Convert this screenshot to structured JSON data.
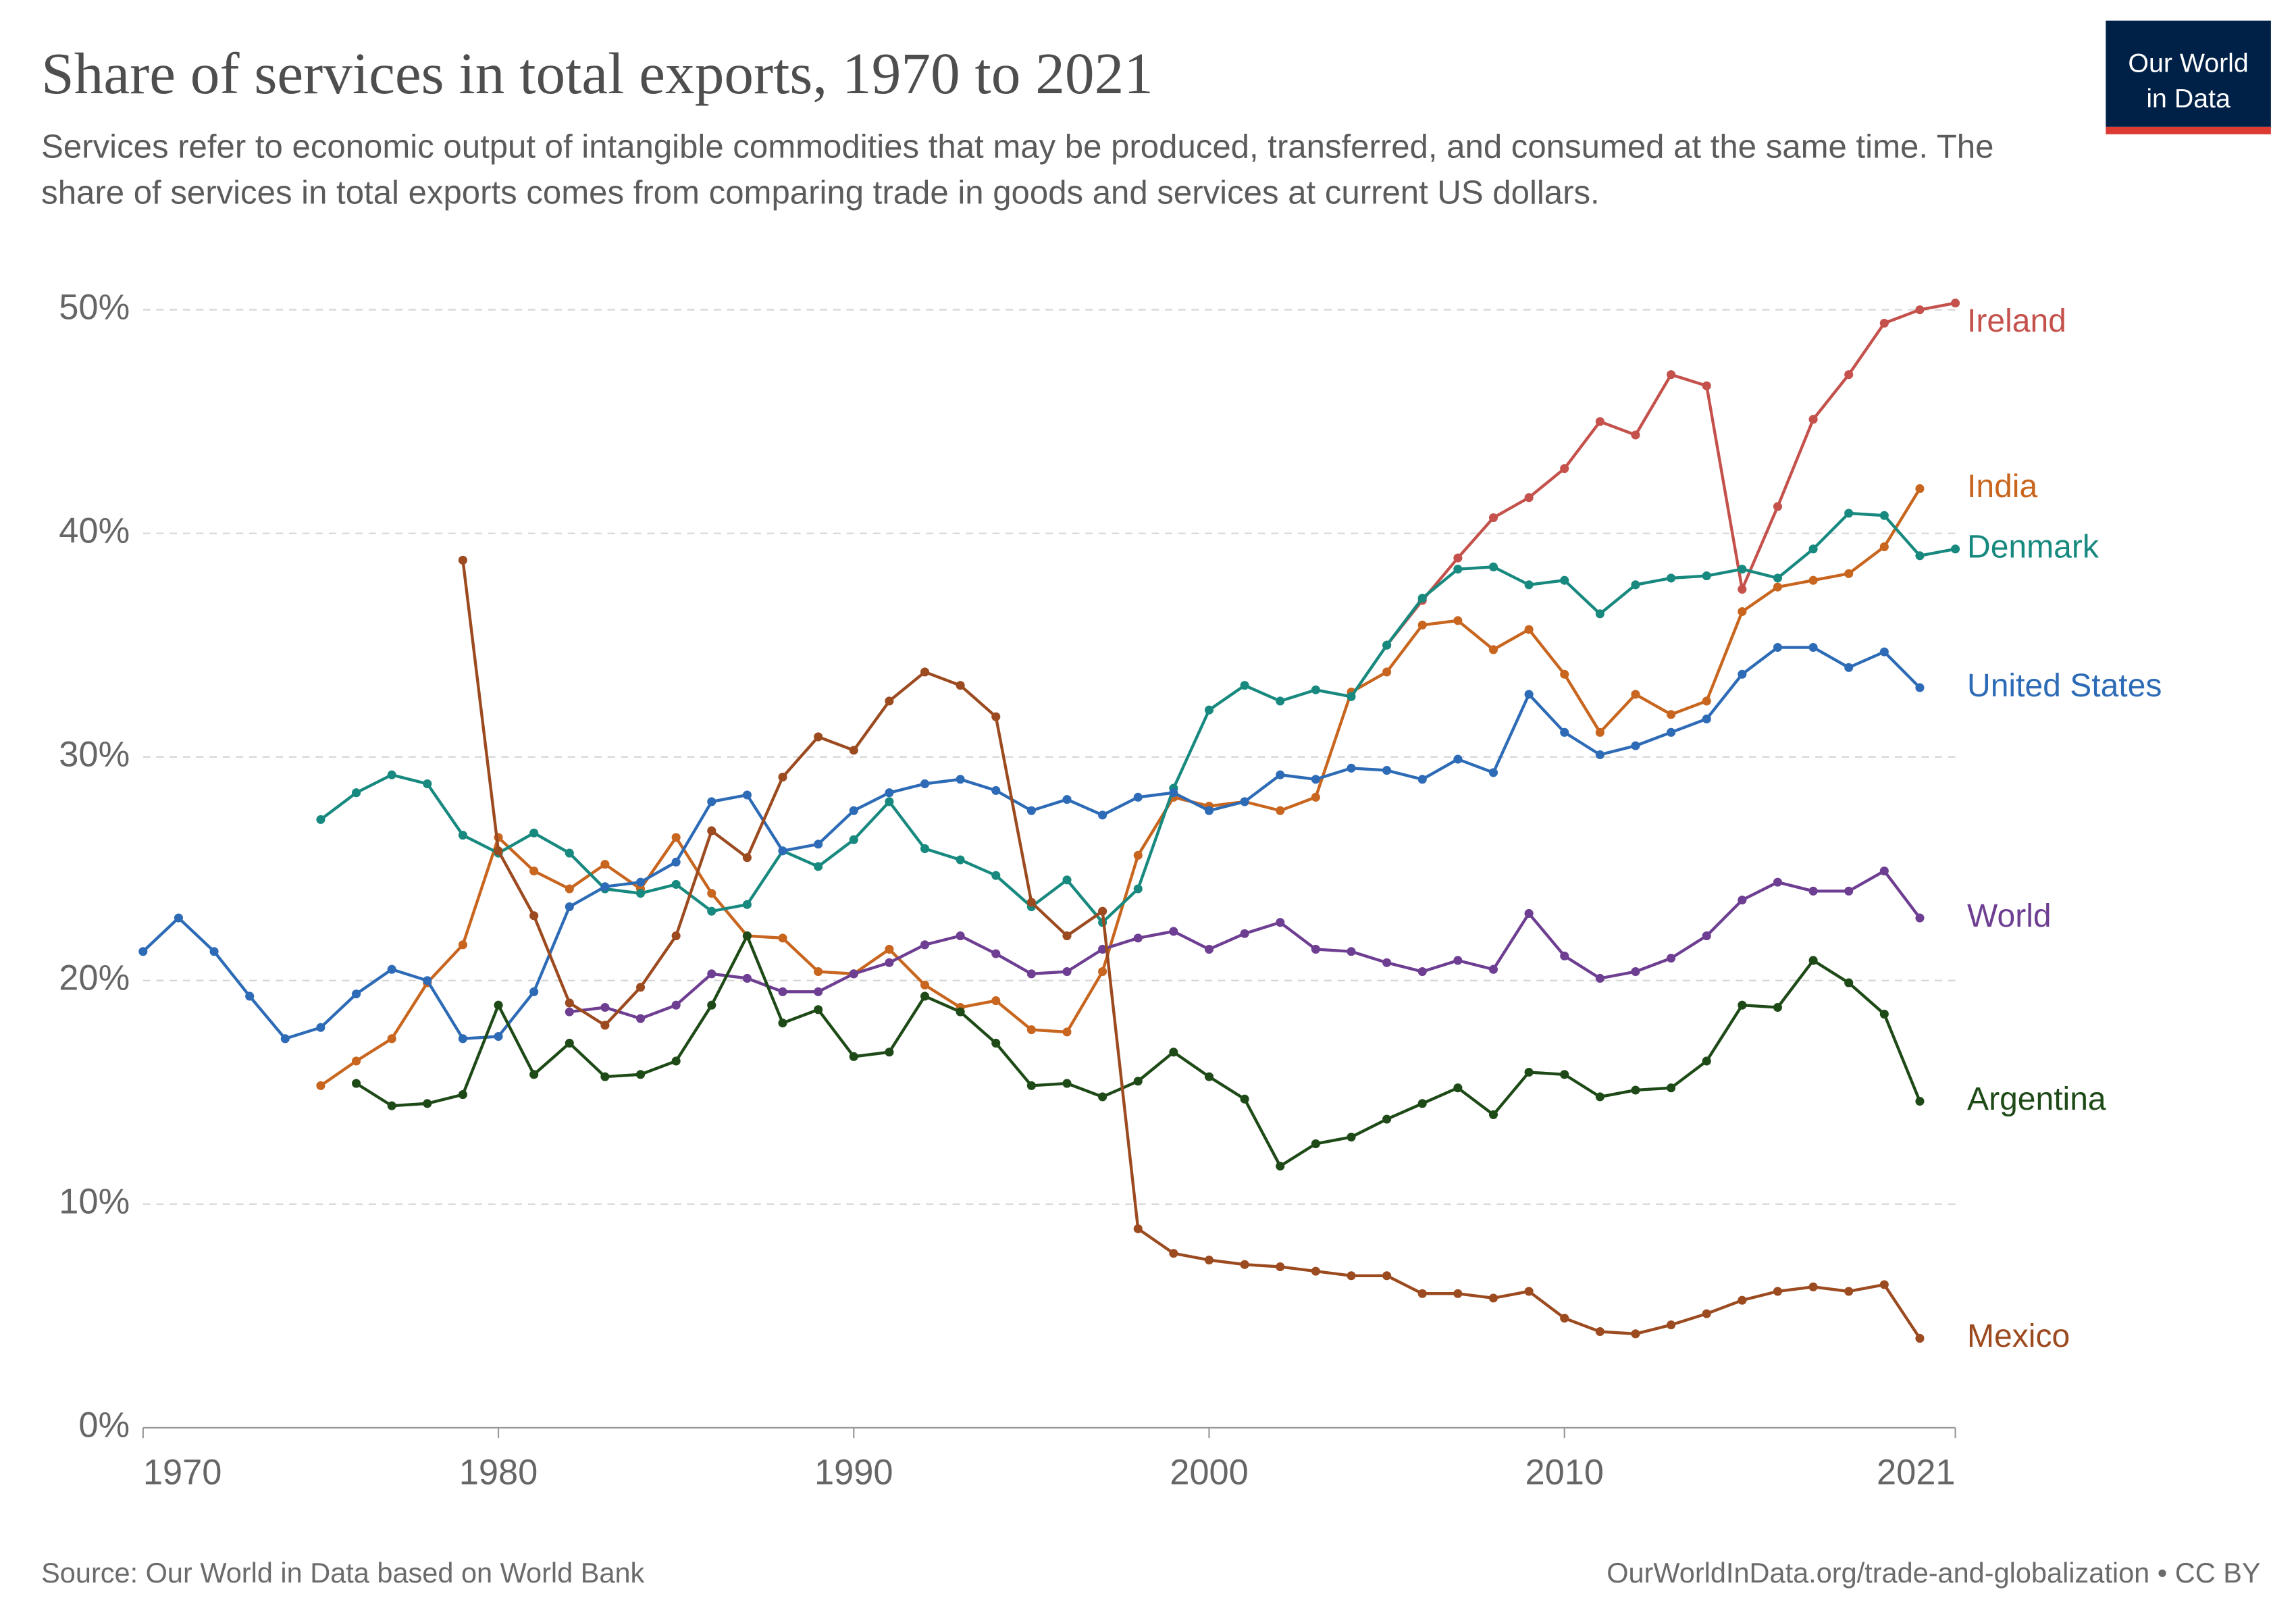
{
  "chart_data": {
    "type": "line",
    "title": "Share of services in total exports, 1970 to 2021",
    "subtitle": "Services refer to economic output of intangible commodities that may be produced, transferred, and consumed at the same time. The share of services in total exports comes from comparing trade in goods and services at current US dollars.",
    "logo": [
      "Our World",
      "in Data"
    ],
    "source": "Source: Our World in Data based on World Bank",
    "license": "OurWorldInData.org/trade-and-globalization • CC BY",
    "x": [
      1970,
      1971,
      1972,
      1973,
      1974,
      1975,
      1976,
      1977,
      1978,
      1979,
      1980,
      1981,
      1982,
      1983,
      1984,
      1985,
      1986,
      1987,
      1988,
      1989,
      1990,
      1991,
      1992,
      1993,
      1994,
      1995,
      1996,
      1997,
      1998,
      1999,
      2000,
      2001,
      2002,
      2003,
      2004,
      2005,
      2006,
      2007,
      2008,
      2009,
      2010,
      2011,
      2012,
      2013,
      2014,
      2015,
      2016,
      2017,
      2018,
      2019,
      2020,
      2021
    ],
    "xlim": [
      1970,
      2021
    ],
    "xticks": [
      1970,
      1980,
      1990,
      2000,
      2010,
      2021
    ],
    "ylim": [
      0,
      50
    ],
    "yticks": [
      {
        "value": 0,
        "label": "0%"
      },
      {
        "value": 10,
        "label": "10%"
      },
      {
        "value": 20,
        "label": "20%"
      },
      {
        "value": 30,
        "label": "30%"
      },
      {
        "value": 40,
        "label": "40%"
      },
      {
        "value": 50,
        "label": "50%"
      }
    ],
    "grid": true,
    "series": [
      {
        "name": "Ireland",
        "color": "#c4514b",
        "values": [
          null,
          null,
          null,
          null,
          null,
          null,
          null,
          null,
          null,
          null,
          null,
          null,
          null,
          null,
          null,
          null,
          null,
          null,
          null,
          null,
          null,
          null,
          null,
          null,
          null,
          null,
          null,
          null,
          null,
          null,
          null,
          null,
          null,
          null,
          null,
          35.0,
          37.0,
          38.9,
          40.7,
          41.6,
          42.9,
          45.0,
          44.4,
          47.1,
          46.6,
          37.5,
          41.2,
          45.1,
          47.1,
          49.4,
          50.0,
          50.3
        ]
      },
      {
        "name": "India",
        "color": "#c8651e",
        "values": [
          null,
          null,
          null,
          null,
          null,
          15.3,
          16.4,
          17.4,
          19.9,
          21.6,
          26.4,
          24.9,
          24.1,
          25.2,
          24.1,
          26.4,
          23.9,
          22.0,
          21.9,
          20.4,
          20.3,
          21.4,
          19.8,
          18.8,
          19.1,
          17.8,
          17.7,
          20.4,
          25.6,
          28.2,
          27.8,
          28.0,
          27.6,
          28.2,
          32.9,
          33.8,
          35.9,
          36.1,
          34.8,
          35.7,
          33.7,
          31.1,
          32.8,
          31.9,
          32.5,
          36.5,
          37.6,
          37.9,
          38.2,
          39.4,
          42.0,
          null
        ]
      },
      {
        "name": "Denmark",
        "color": "#18897f",
        "values": [
          null,
          null,
          null,
          null,
          null,
          27.2,
          28.4,
          29.2,
          28.8,
          26.5,
          25.7,
          26.6,
          25.7,
          24.1,
          23.9,
          24.3,
          23.1,
          23.4,
          25.8,
          25.1,
          26.3,
          28.0,
          25.9,
          25.4,
          24.7,
          23.3,
          24.5,
          22.6,
          24.1,
          28.6,
          32.1,
          33.2,
          32.5,
          33.0,
          32.7,
          35.0,
          37.1,
          38.4,
          38.5,
          37.7,
          37.9,
          36.4,
          37.7,
          38.0,
          38.1,
          38.4,
          38.0,
          39.3,
          40.9,
          40.8,
          39.0,
          39.3
        ]
      },
      {
        "name": "United States",
        "color": "#2d6bb6",
        "values": [
          21.3,
          22.8,
          21.3,
          19.3,
          17.4,
          17.9,
          19.4,
          20.5,
          20.0,
          17.4,
          17.5,
          19.5,
          23.3,
          24.2,
          24.4,
          25.3,
          28.0,
          28.3,
          25.8,
          26.1,
          27.6,
          28.4,
          28.8,
          29.0,
          28.5,
          27.6,
          28.1,
          27.4,
          28.2,
          28.4,
          27.6,
          28.0,
          29.2,
          29.0,
          29.5,
          29.4,
          29.0,
          29.9,
          29.3,
          32.8,
          31.1,
          30.1,
          30.5,
          31.1,
          31.7,
          33.7,
          34.9,
          34.9,
          34.0,
          34.7,
          33.1,
          null
        ]
      },
      {
        "name": "World",
        "color": "#6d3e91",
        "values": [
          null,
          null,
          null,
          null,
          null,
          null,
          null,
          null,
          null,
          null,
          null,
          null,
          18.6,
          18.8,
          18.3,
          18.9,
          20.3,
          20.1,
          19.5,
          19.5,
          20.3,
          20.8,
          21.6,
          22.0,
          21.2,
          20.3,
          20.4,
          21.4,
          21.9,
          22.2,
          21.4,
          22.1,
          22.6,
          21.4,
          21.3,
          20.8,
          20.4,
          20.9,
          20.5,
          23.0,
          21.1,
          20.1,
          20.4,
          21.0,
          22.0,
          23.6,
          24.4,
          24.0,
          24.0,
          24.9,
          22.8,
          null
        ]
      },
      {
        "name": "Argentina",
        "color": "#1e4a17",
        "values": [
          null,
          null,
          null,
          null,
          null,
          null,
          15.4,
          14.4,
          14.5,
          14.9,
          18.9,
          15.8,
          17.2,
          15.7,
          15.8,
          16.4,
          18.9,
          22.0,
          18.1,
          18.7,
          16.6,
          16.8,
          19.3,
          18.6,
          17.2,
          15.3,
          15.4,
          14.8,
          15.5,
          16.8,
          15.7,
          14.7,
          11.7,
          12.7,
          13.0,
          13.8,
          14.5,
          15.2,
          14.0,
          15.9,
          15.8,
          14.8,
          15.1,
          15.2,
          16.4,
          18.9,
          18.8,
          20.9,
          19.9,
          18.5,
          14.6,
          null
        ]
      },
      {
        "name": "Mexico",
        "color": "#9c4a1f",
        "values": [
          null,
          null,
          null,
          null,
          null,
          null,
          null,
          null,
          null,
          38.8,
          25.8,
          22.9,
          19.0,
          18.0,
          19.7,
          22.0,
          26.7,
          25.5,
          29.1,
          30.9,
          30.3,
          32.5,
          33.8,
          33.2,
          31.8,
          23.5,
          22.0,
          23.1,
          8.9,
          7.8,
          7.5,
          7.3,
          7.2,
          7.0,
          6.8,
          6.8,
          6.0,
          6.0,
          5.8,
          6.1,
          4.9,
          4.3,
          4.2,
          4.6,
          5.1,
          5.7,
          6.1,
          6.3,
          6.1,
          6.4,
          4.0,
          null
        ]
      }
    ]
  }
}
